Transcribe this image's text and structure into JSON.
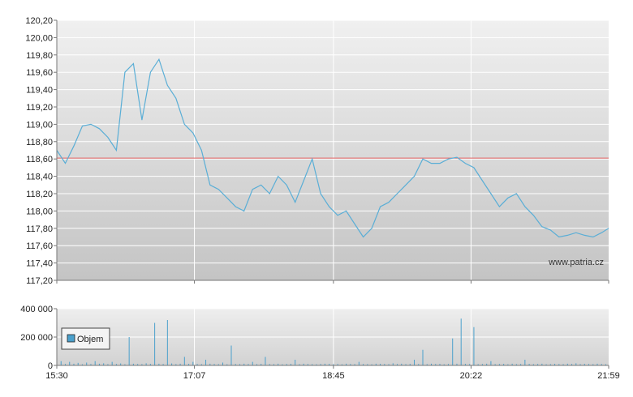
{
  "chart_data": [
    {
      "type": "line",
      "panel": "price",
      "ylim": [
        117.2,
        120.2
      ],
      "yticks": [
        "120,20",
        "120,00",
        "119,80",
        "119,60",
        "119,40",
        "119,20",
        "119,00",
        "118,80",
        "118,60",
        "118,40",
        "118,20",
        "118,00",
        "117,80",
        "117,60",
        "117,40",
        "117,20"
      ],
      "yticks_values": [
        120.2,
        120.0,
        119.8,
        119.6,
        119.4,
        119.2,
        119.0,
        118.8,
        118.6,
        118.4,
        118.2,
        118.0,
        117.8,
        117.6,
        117.4,
        117.2
      ],
      "reference_line": 118.61,
      "colors": {
        "line": "#5aaed6",
        "reference": "#e06060"
      },
      "series": [
        {
          "x": [
            "15:30",
            "15:36",
            "15:42",
            "15:48",
            "15:54",
            "16:00",
            "16:06",
            "16:12",
            "16:18",
            "16:24",
            "16:30",
            "16:36",
            "16:42",
            "16:48",
            "16:54",
            "17:00",
            "17:06",
            "17:12",
            "17:18",
            "17:24",
            "17:30",
            "17:36",
            "17:42",
            "17:48",
            "17:54",
            "18:00",
            "18:06",
            "18:12",
            "18:18",
            "18:24",
            "18:30",
            "18:36",
            "18:42",
            "18:48",
            "18:54",
            "19:00",
            "19:06",
            "19:12",
            "19:18",
            "19:24",
            "19:30",
            "19:36",
            "19:42",
            "19:48",
            "19:54",
            "20:00",
            "20:06",
            "20:12",
            "20:18",
            "20:24",
            "20:30",
            "20:36",
            "20:42",
            "20:48",
            "20:54",
            "21:00",
            "21:06",
            "21:12",
            "21:18",
            "21:24",
            "21:30",
            "21:36",
            "21:42",
            "21:48",
            "21:54",
            "21:59"
          ],
          "values": [
            118.7,
            118.55,
            118.75,
            118.98,
            119.0,
            118.95,
            118.85,
            118.7,
            119.6,
            119.7,
            119.05,
            119.6,
            119.75,
            119.45,
            119.3,
            119.0,
            118.9,
            118.7,
            118.3,
            118.25,
            118.15,
            118.05,
            118.0,
            118.25,
            118.3,
            118.2,
            118.4,
            118.3,
            118.1,
            118.35,
            118.6,
            118.2,
            118.05,
            117.95,
            118.0,
            117.85,
            117.7,
            117.8,
            118.05,
            118.1,
            118.2,
            118.3,
            118.4,
            118.6,
            118.55,
            118.55,
            118.6,
            118.62,
            118.55,
            118.5,
            118.35,
            118.2,
            118.05,
            118.15,
            118.2,
            118.05,
            117.95,
            117.82,
            117.78,
            117.7,
            117.72,
            117.75,
            117.72,
            117.7,
            117.75,
            117.8
          ]
        }
      ]
    },
    {
      "type": "bar",
      "panel": "volume",
      "ylim": [
        0,
        400000
      ],
      "yticks": [
        "400 000",
        "200 000",
        "0"
      ],
      "yticks_values": [
        400000,
        200000,
        0
      ],
      "colors": {
        "bar": "#4aa0cc"
      },
      "series": [
        {
          "name": "Objem",
          "x": [
            "15:30",
            "15:33",
            "15:36",
            "15:39",
            "15:42",
            "15:45",
            "15:48",
            "15:51",
            "15:54",
            "15:57",
            "16:00",
            "16:03",
            "16:06",
            "16:09",
            "16:12",
            "16:15",
            "16:18",
            "16:21",
            "16:24",
            "16:27",
            "16:30",
            "16:33",
            "16:36",
            "16:39",
            "16:42",
            "16:45",
            "16:48",
            "16:51",
            "16:54",
            "16:57",
            "17:00",
            "17:03",
            "17:06",
            "17:09",
            "17:12",
            "17:15",
            "17:18",
            "17:21",
            "17:24",
            "17:27",
            "17:30",
            "17:33",
            "17:36",
            "17:39",
            "17:42",
            "17:45",
            "17:48",
            "17:51",
            "17:54",
            "17:57",
            "18:00",
            "18:03",
            "18:06",
            "18:09",
            "18:12",
            "18:15",
            "18:18",
            "18:21",
            "18:24",
            "18:27",
            "18:30",
            "18:33",
            "18:36",
            "18:39",
            "18:42",
            "18:45",
            "18:48",
            "18:51",
            "18:54",
            "18:57",
            "19:00",
            "19:03",
            "19:06",
            "19:09",
            "19:12",
            "19:15",
            "19:18",
            "19:21",
            "19:24",
            "19:27",
            "19:30",
            "19:33",
            "19:36",
            "19:39",
            "19:42",
            "19:45",
            "19:48",
            "19:51",
            "19:54",
            "19:57",
            "20:00",
            "20:03",
            "20:06",
            "20:09",
            "20:12",
            "20:15",
            "20:18",
            "20:21",
            "20:24",
            "20:27",
            "20:30",
            "20:33",
            "20:36",
            "20:39",
            "20:42",
            "20:45",
            "20:48",
            "20:51",
            "20:54",
            "20:57",
            "21:00",
            "21:03",
            "21:06",
            "21:09",
            "21:12",
            "21:15",
            "21:18",
            "21:21",
            "21:24",
            "21:27",
            "21:30",
            "21:33",
            "21:36",
            "21:39",
            "21:42",
            "21:45",
            "21:48",
            "21:51",
            "21:54",
            "21:57"
          ],
          "values": [
            15000,
            30000,
            10000,
            25000,
            12000,
            18000,
            8000,
            20000,
            10000,
            30000,
            12000,
            15000,
            9000,
            25000,
            10000,
            14000,
            8000,
            200000,
            12000,
            10000,
            9000,
            15000,
            11000,
            300000,
            12000,
            10000,
            320000,
            14000,
            9000,
            12000,
            60000,
            11000,
            25000,
            10000,
            9000,
            40000,
            12000,
            10000,
            9000,
            20000,
            8000,
            140000,
            10000,
            9000,
            12000,
            10000,
            25000,
            9000,
            11000,
            60000,
            10000,
            9000,
            12000,
            8000,
            10000,
            11000,
            40000,
            9000,
            12000,
            10000,
            9000,
            8000,
            10000,
            12000,
            11000,
            9000,
            10000,
            8000,
            12000,
            10000,
            9000,
            25000,
            10000,
            9000,
            8000,
            12000,
            11000,
            10000,
            9000,
            15000,
            10000,
            12000,
            9000,
            11000,
            40000,
            10000,
            110000,
            9000,
            12000,
            10000,
            11000,
            8000,
            10000,
            190000,
            12000,
            330000,
            11000,
            10000,
            270000,
            9000,
            10000,
            12000,
            30000,
            9000,
            10000,
            11000,
            8000,
            12000,
            9000,
            10000,
            40000,
            11000,
            9000,
            10000,
            12000,
            8000,
            9000,
            11000,
            10000,
            9000,
            12000,
            10000,
            15000,
            9000,
            11000,
            10000,
            9000,
            12000,
            10000,
            8000
          ]
        }
      ],
      "legend": {
        "label": "Objem"
      }
    }
  ],
  "xaxis": {
    "ticks": [
      "15:30",
      "17:07",
      "18:45",
      "20:22",
      "21:59"
    ]
  },
  "watermark": "www.patria.cz"
}
